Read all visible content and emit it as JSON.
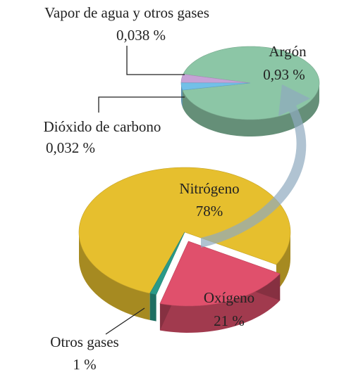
{
  "chart_data": [
    {
      "type": "pie",
      "categories": [
        "Nitrógeno",
        "Oxígeno",
        "Otros gases"
      ],
      "values": [
        78,
        21,
        1
      ],
      "value_labels": [
        "78%",
        "21 %",
        "1 %"
      ],
      "colors": [
        "#e6bf2e",
        "#e0506c",
        "#2a9a88"
      ]
    },
    {
      "type": "pie",
      "categories": [
        "Argón",
        "Vapor de agua y otros gases",
        "Dióxido de carbono"
      ],
      "values": [
        0.93,
        0.038,
        0.032
      ],
      "value_labels": [
        "0,93 %",
        "0,038 %",
        "0,032 %"
      ],
      "colors": [
        "#8cc6a6",
        "#c6a2d6",
        "#72c0e8"
      ]
    }
  ]
}
